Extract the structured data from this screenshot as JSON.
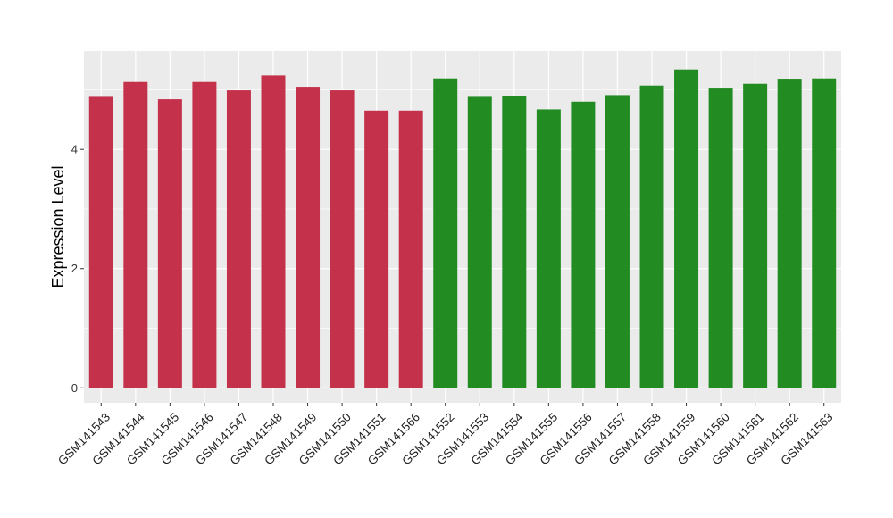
{
  "chart_data": {
    "type": "bar",
    "ylabel": "Expression Level",
    "xlabel": "",
    "ylim": [
      -0.25,
      5.65
    ],
    "yticks": [
      0,
      2,
      4
    ],
    "grid": true,
    "legend": "none",
    "colors": {
      "group_a": "#c4314b",
      "group_b": "#228b22",
      "panel_bg": "#ebebeb",
      "grid": "#ffffff"
    },
    "categories": [
      "GSM141543",
      "GSM141544",
      "GSM141545",
      "GSM141546",
      "GSM141547",
      "GSM141548",
      "GSM141549",
      "GSM141550",
      "GSM141551",
      "GSM141566",
      "GSM141552",
      "GSM141553",
      "GSM141554",
      "GSM141555",
      "GSM141556",
      "GSM141557",
      "GSM141558",
      "GSM141559",
      "GSM141560",
      "GSM141561",
      "GSM141562",
      "GSM141563"
    ],
    "values": [
      4.88,
      5.13,
      4.84,
      5.13,
      4.99,
      5.24,
      5.05,
      4.99,
      4.65,
      4.65,
      5.19,
      4.88,
      4.9,
      4.67,
      4.8,
      4.91,
      5.07,
      5.34,
      5.02,
      5.1,
      5.17,
      5.19
    ],
    "groups": [
      "a",
      "a",
      "a",
      "a",
      "a",
      "a",
      "a",
      "a",
      "a",
      "a",
      "b",
      "b",
      "b",
      "b",
      "b",
      "b",
      "b",
      "b",
      "b",
      "b",
      "b",
      "b"
    ]
  }
}
